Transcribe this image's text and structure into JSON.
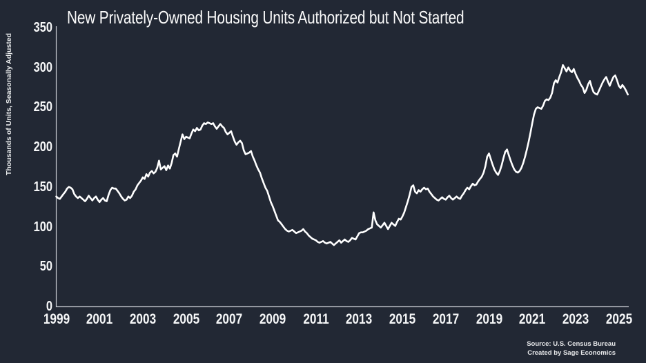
{
  "title": "New Privately-Owned Housing Units Authorized but Not Started",
  "source": {
    "line1": "Source: U.S. Census Bureau",
    "line2": "Created by Sage Economics"
  },
  "colors": {
    "background": "#222834",
    "line": "#ffffff",
    "axis": "#c9ccd2",
    "text": "#f5f6f7"
  },
  "chart_data": {
    "type": "line",
    "title": "New Privately-Owned Housing Units Authorized but Not Started",
    "xlabel": "",
    "ylabel": "Thousands of Units, Seasonally Adjusted",
    "x_start_year": 1999,
    "x_frequency": "monthly",
    "xlim": [
      1999,
      2025.6
    ],
    "ylim": [
      0,
      350
    ],
    "y_ticks": [
      0,
      50,
      100,
      150,
      200,
      250,
      300,
      350
    ],
    "x_ticks": [
      1999,
      2001,
      2003,
      2005,
      2007,
      2009,
      2011,
      2013,
      2015,
      2017,
      2019,
      2021,
      2023,
      2025
    ],
    "grid": false,
    "legend": false,
    "series": [
      {
        "name": "Housing units authorized but not started",
        "values": [
          138,
          136,
          135,
          138,
          141,
          144,
          148,
          150,
          149,
          147,
          141,
          138,
          136,
          138,
          136,
          134,
          132,
          135,
          139,
          136,
          133,
          136,
          138,
          134,
          131,
          134,
          136,
          133,
          132,
          140,
          146,
          149,
          148,
          148,
          145,
          142,
          138,
          135,
          133,
          134,
          138,
          136,
          139,
          144,
          147,
          152,
          155,
          158,
          162,
          160,
          166,
          163,
          168,
          170,
          167,
          169,
          174,
          183,
          172,
          174,
          176,
          171,
          177,
          173,
          180,
          190,
          192,
          188,
          198,
          207,
          216,
          210,
          213,
          212,
          211,
          217,
          222,
          220,
          224,
          221,
          222,
          227,
          230,
          229,
          231,
          230,
          229,
          230,
          226,
          223,
          226,
          229,
          226,
          224,
          219,
          216,
          218,
          220,
          213,
          207,
          203,
          206,
          208,
          205,
          196,
          191,
          192,
          193,
          195,
          188,
          183,
          177,
          172,
          168,
          161,
          155,
          149,
          145,
          138,
          131,
          126,
          120,
          114,
          108,
          106,
          103,
          100,
          97,
          95,
          94,
          95,
          96,
          94,
          92,
          93,
          94,
          95,
          97,
          94,
          92,
          89,
          87,
          85,
          84,
          83,
          81,
          80,
          81,
          82,
          80,
          79,
          80,
          81,
          79,
          77,
          79,
          81,
          83,
          80,
          82,
          84,
          82,
          81,
          83,
          86,
          85,
          84,
          88,
          92,
          93,
          93,
          94,
          95,
          97,
          98,
          99,
          118,
          108,
          103,
          101,
          99,
          102,
          105,
          101,
          97,
          101,
          105,
          103,
          101,
          106,
          110,
          109,
          113,
          118,
          125,
          132,
          140,
          150,
          152,
          144,
          142,
          146,
          144,
          147,
          149,
          147,
          148,
          144,
          141,
          138,
          136,
          134,
          133,
          135,
          137,
          135,
          134,
          137,
          139,
          136,
          134,
          136,
          138,
          136,
          135,
          139,
          142,
          146,
          149,
          147,
          151,
          154,
          152,
          153,
          157,
          160,
          163,
          168,
          176,
          188,
          192,
          185,
          178,
          172,
          168,
          165,
          170,
          177,
          186,
          194,
          197,
          190,
          183,
          177,
          172,
          169,
          168,
          170,
          174,
          180,
          188,
          197,
          207,
          218,
          230,
          241,
          248,
          250,
          249,
          248,
          252,
          258,
          260,
          259,
          262,
          268,
          280,
          284,
          281,
          288,
          294,
          303,
          299,
          295,
          300,
          296,
          294,
          298,
          292,
          287,
          283,
          278,
          275,
          268,
          272,
          279,
          283,
          275,
          269,
          267,
          266,
          271,
          276,
          281,
          285,
          288,
          282,
          277,
          283,
          288,
          290,
          284,
          277,
          274,
          278,
          275,
          271,
          266
        ]
      }
    ]
  }
}
